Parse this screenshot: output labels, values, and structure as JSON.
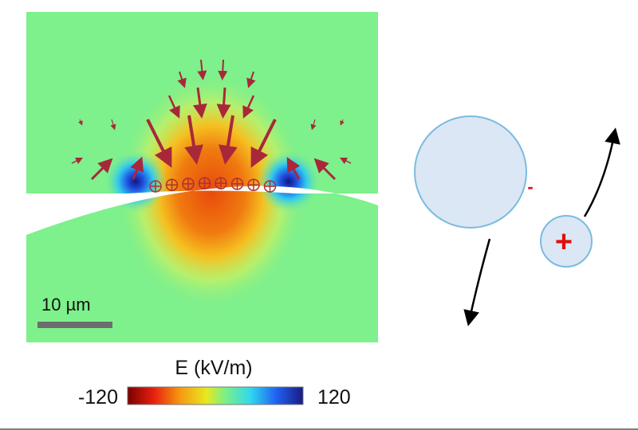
{
  "field_map": {
    "scale_bar_label": "10 µm",
    "surface_charge_symbol": "⊕",
    "surface_charge_count": 8
  },
  "colorbar": {
    "title": "E (kV/m)",
    "min_label": "-120",
    "max_label": "120",
    "colors": [
      "#7a0000",
      "#e82010",
      "#f59a10",
      "#e8e820",
      "#80f080",
      "#30d8f0",
      "#2060f0",
      "#1a1a80"
    ]
  },
  "schematic": {
    "large_particle_charge": "-",
    "small_particle_charge": "+",
    "particle_fill": "#dbe7f4",
    "particle_stroke": "#7bbbe0",
    "charge_color": "#e01010"
  },
  "colors": {
    "field_background": "#7ef08c",
    "arrow_color": "#a8283a"
  }
}
